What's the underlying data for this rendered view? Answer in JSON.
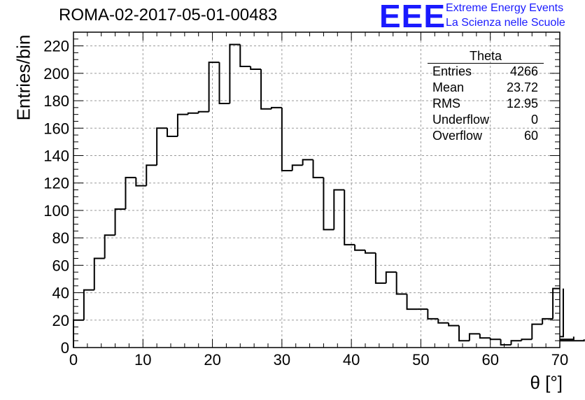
{
  "header": {
    "title": "ROMA-02-2017-05-01-00483",
    "logo_text": "EEE",
    "brand_line1": "Extreme Energy Events",
    "brand_line2": "La Scienza nelle Scuole"
  },
  "stats_box": {
    "title": "Theta",
    "rows": [
      {
        "label": "Entries",
        "value": "4266"
      },
      {
        "label": "Mean",
        "value": "23.72"
      },
      {
        "label": "RMS",
        "value": "12.95"
      },
      {
        "label": "Underflow",
        "value": "0"
      },
      {
        "label": "Overflow",
        "value": "60"
      }
    ]
  },
  "colors": {
    "logo": "#1a1aff",
    "line": "#000000",
    "grid": "#9a9a9a"
  },
  "chart_data": {
    "type": "bar",
    "title": "ROMA-02-2017-05-01-00483",
    "xlabel": "θ [°]",
    "ylabel": "Entries/bin",
    "xlim": [
      0,
      70
    ],
    "ylim": [
      0,
      230
    ],
    "bin_width": 1.5,
    "bin_start": 0,
    "xticks": [
      0,
      10,
      20,
      30,
      40,
      50,
      60,
      70
    ],
    "yticks": [
      0,
      20,
      40,
      60,
      80,
      100,
      120,
      140,
      160,
      180,
      200,
      220
    ],
    "grid": true,
    "values": [
      20,
      42,
      65,
      82,
      101,
      124,
      118,
      133,
      160,
      154,
      170,
      171,
      172,
      208,
      178,
      221,
      205,
      203,
      174,
      175,
      129,
      133,
      137,
      124,
      86,
      115,
      75,
      71,
      69,
      47,
      55,
      39,
      28,
      28,
      21,
      18,
      16,
      5,
      10,
      7,
      6,
      2,
      5,
      6,
      17,
      21,
      43,
      8,
      6,
      5
    ]
  }
}
